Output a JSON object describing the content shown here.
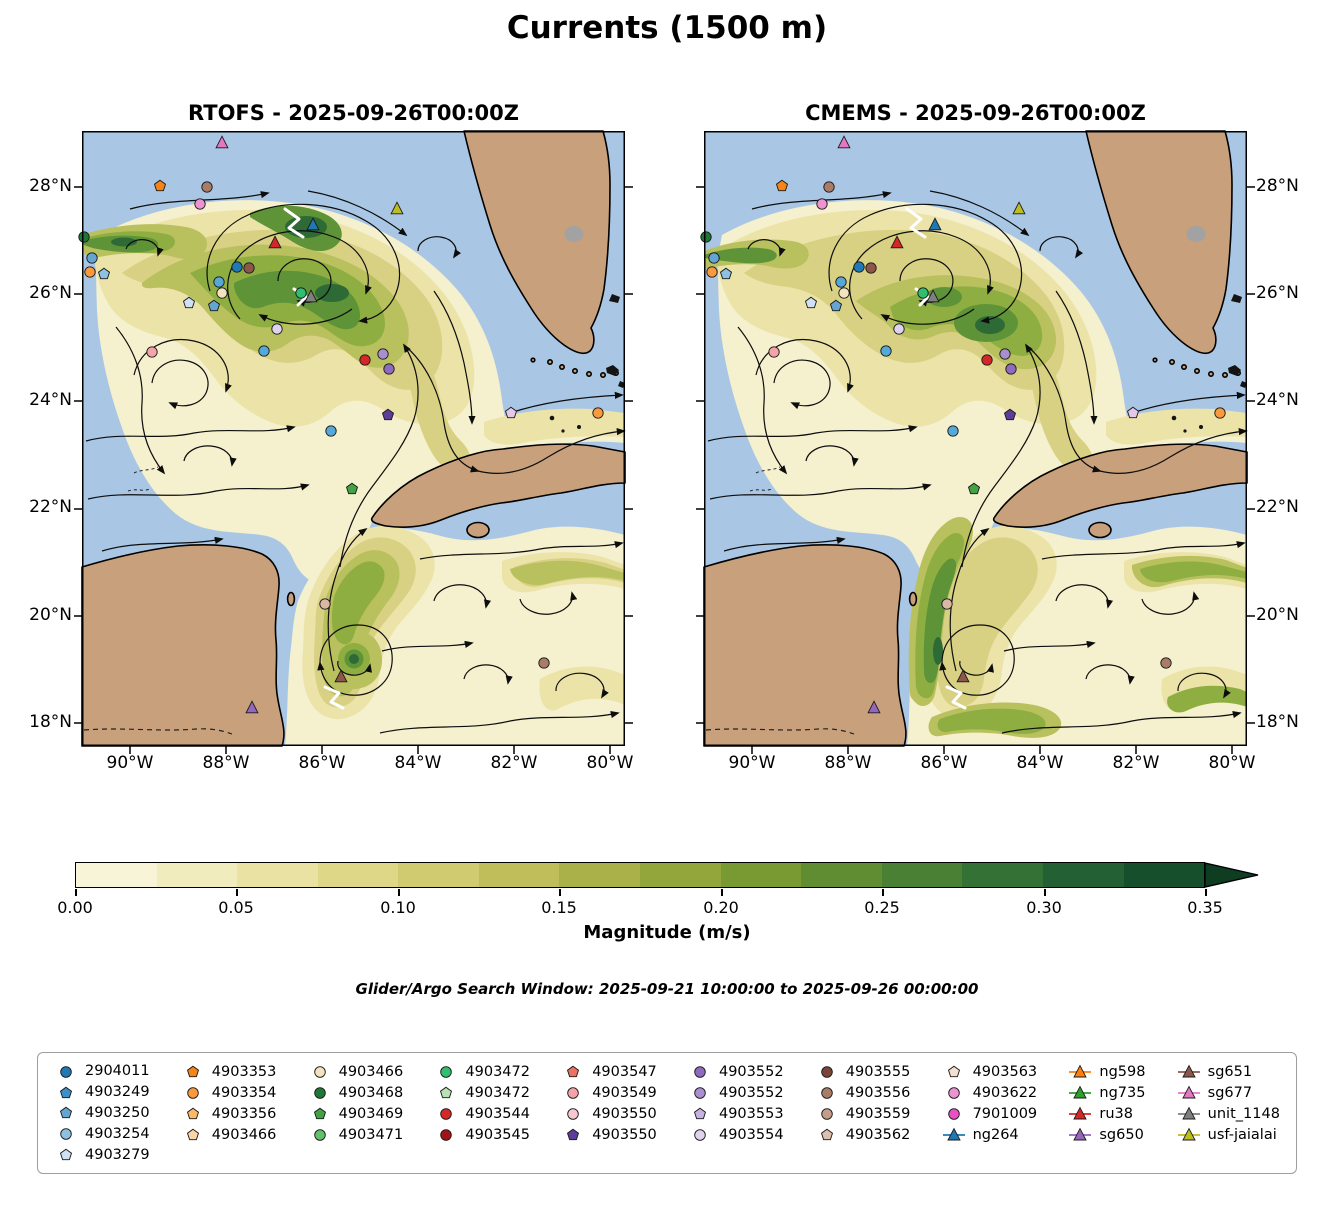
{
  "figure_title": "Currents (1500 m)",
  "panels": [
    {
      "title": "RTOFS - 2025-09-26T00:00Z"
    },
    {
      "title": "CMEMS - 2025-09-26T00:00Z"
    }
  ],
  "axes": {
    "x_ticks": [
      "90°W",
      "88°W",
      "86°W",
      "84°W",
      "82°W",
      "80°W"
    ],
    "y_ticks": [
      "28°N",
      "26°N",
      "24°N",
      "22°N",
      "20°N",
      "18°N"
    ]
  },
  "colorbar": {
    "label": "Magnitude (m/s)",
    "ticks": [
      "0.00",
      "0.05",
      "0.10",
      "0.15",
      "0.20",
      "0.25",
      "0.30",
      "0.35"
    ],
    "segment_colors": [
      "#f7f4d8",
      "#f1ecbd",
      "#e9e2a2",
      "#ded788",
      "#d0cb70",
      "#bfbe5a",
      "#aab148",
      "#92a63b",
      "#799a33",
      "#608d31",
      "#498033",
      "#347134",
      "#236134",
      "#164f2c"
    ],
    "extend_color": "#0e3d22"
  },
  "caption": "Glider/Argo Search Window: 2025-09-21 10:00:00 to 2025-09-26 00:00:00",
  "map_colors": {
    "water": "#a9c7e5",
    "land": "#c8a07c",
    "magnitude_low": "#f5f0cd",
    "magnitude_high": "#1e5b33"
  },
  "legend": {
    "columns": [
      [
        {
          "label": "2904011",
          "marker": "circle",
          "color": "#2079b4",
          "line": false
        },
        {
          "label": "4903249",
          "marker": "pentagon",
          "color": "#3d8ec9",
          "line": false
        },
        {
          "label": "4903250",
          "marker": "pentagon",
          "color": "#64a6d1",
          "line": false
        },
        {
          "label": "4903254",
          "marker": "circle",
          "color": "#8ec0e2",
          "line": false
        },
        {
          "label": "4903279",
          "marker": "pentagon",
          "color": "#cfe1f2",
          "line": false
        }
      ],
      [
        {
          "label": "4903353",
          "marker": "pentagon",
          "color": "#f58518",
          "line": false
        },
        {
          "label": "4903354",
          "marker": "circle",
          "color": "#fb9a3c",
          "line": false
        },
        {
          "label": "4903356",
          "marker": "pentagon",
          "color": "#fdb96b",
          "line": false
        },
        {
          "label": "4903466",
          "marker": "pentagon",
          "color": "#fdd3a8",
          "line": false
        }
      ],
      [
        {
          "label": "4903466",
          "marker": "circle",
          "color": "#f2e4bf",
          "line": false
        },
        {
          "label": "4903468",
          "marker": "circle",
          "color": "#1e7735",
          "line": false
        },
        {
          "label": "4903469",
          "marker": "pentagon",
          "color": "#41a344",
          "line": false
        },
        {
          "label": "4903471",
          "marker": "circle",
          "color": "#63bf6a",
          "line": false
        }
      ],
      [
        {
          "label": "4903472",
          "marker": "circle",
          "color": "#2fbf71",
          "line": false
        },
        {
          "label": "4903472",
          "marker": "pentagon",
          "color": "#b8e2b3",
          "line": false
        },
        {
          "label": "4903544",
          "marker": "circle",
          "color": "#d62728",
          "line": false
        },
        {
          "label": "4903545",
          "marker": "circle",
          "color": "#a31316",
          "line": false
        }
      ],
      [
        {
          "label": "4903547",
          "marker": "pentagon",
          "color": "#ec7063",
          "line": false
        },
        {
          "label": "4903549",
          "marker": "circle",
          "color": "#f4a3a8",
          "line": false
        },
        {
          "label": "4903550",
          "marker": "circle",
          "color": "#f8c8d0",
          "line": false
        },
        {
          "label": "4903550",
          "marker": "pentagon",
          "color": "#5e3c99",
          "line": false
        }
      ],
      [
        {
          "label": "4903552",
          "marker": "circle",
          "color": "#8e6bbf",
          "line": false
        },
        {
          "label": "4903552",
          "marker": "circle",
          "color": "#a98fd0",
          "line": false
        },
        {
          "label": "4903553",
          "marker": "pentagon",
          "color": "#c6b3e2",
          "line": false
        },
        {
          "label": "4903554",
          "marker": "circle",
          "color": "#ded2ef",
          "line": false
        }
      ],
      [
        {
          "label": "4903555",
          "marker": "circle",
          "color": "#7a4538",
          "line": false
        },
        {
          "label": "4903556",
          "marker": "circle",
          "color": "#a97c68",
          "line": false
        },
        {
          "label": "4903559",
          "marker": "circle",
          "color": "#c49c8a",
          "line": false
        },
        {
          "label": "4903562",
          "marker": "pentagon",
          "color": "#dec0ae",
          "line": false
        }
      ],
      [
        {
          "label": "4903563",
          "marker": "pentagon",
          "color": "#f5dfce",
          "line": false
        },
        {
          "label": "4903622",
          "marker": "circle",
          "color": "#ee93d2",
          "line": false
        },
        {
          "label": "7901009",
          "marker": "circle",
          "color": "#e751c1",
          "line": false
        },
        {
          "label": "ng264",
          "marker": "triangle",
          "color": "#1f77b4",
          "line": true
        }
      ],
      [
        {
          "label": "ng598",
          "marker": "triangle",
          "color": "#ff7f0e",
          "line": true
        },
        {
          "label": "ng735",
          "marker": "triangle",
          "color": "#2ca02c",
          "line": true
        },
        {
          "label": "ru38",
          "marker": "triangle",
          "color": "#d62728",
          "line": true
        },
        {
          "label": "sg650",
          "marker": "triangle",
          "color": "#9467bd",
          "line": true
        }
      ],
      [
        {
          "label": "sg651",
          "marker": "triangle",
          "color": "#8c564b",
          "line": true
        },
        {
          "label": "sg677",
          "marker": "triangle",
          "color": "#e377c2",
          "line": true
        },
        {
          "label": "unit_1148",
          "marker": "triangle",
          "color": "#7f7f7f",
          "line": true
        },
        {
          "label": "usf-jaialai",
          "marker": "triangle",
          "color": "#bcbd22",
          "line": true
        }
      ]
    ]
  },
  "chart_data": {
    "type": "map-streamplot",
    "title": "Currents (1500 m)",
    "panels": [
      {
        "model": "RTOFS",
        "valid_time": "2025-09-26T00:00Z"
      },
      {
        "model": "CMEMS",
        "valid_time": "2025-09-26T00:00Z"
      }
    ],
    "x_tick_labels": [
      "90°W",
      "88°W",
      "86°W",
      "84°W",
      "82°W",
      "80°W"
    ],
    "y_tick_labels": [
      "28°N",
      "26°N",
      "24°N",
      "22°N",
      "20°N",
      "18°N"
    ],
    "lon_range_deg_west": [
      91.0,
      79.7
    ],
    "lat_range_deg_north": [
      17.6,
      29.0
    ],
    "colorbar": {
      "label": "Magnitude (m/s)",
      "min": 0.0,
      "max": 0.35,
      "tick_interval": 0.05,
      "extend": "max"
    },
    "overlays": [
      "current magnitude filled contours",
      "streamlines with arrows",
      "glider/argo platform markers"
    ],
    "glider_argo_search_window": {
      "start": "2025-09-21 10:00:00",
      "end": "2025-09-26 00:00:00"
    },
    "platforms": [
      "2904011",
      "4903249",
      "4903250",
      "4903254",
      "4903279",
      "4903353",
      "4903354",
      "4903356",
      "4903466",
      "4903466",
      "4903468",
      "4903469",
      "4903471",
      "4903472",
      "4903472",
      "4903544",
      "4903545",
      "4903547",
      "4903549",
      "4903550",
      "4903550",
      "4903552",
      "4903552",
      "4903553",
      "4903554",
      "4903555",
      "4903556",
      "4903559",
      "4903562",
      "4903563",
      "4903622",
      "7901009",
      "ng264",
      "ng598",
      "ng735",
      "ru38",
      "sg650",
      "sg651",
      "sg677",
      "unit_1148",
      "usf-jaialai"
    ]
  }
}
